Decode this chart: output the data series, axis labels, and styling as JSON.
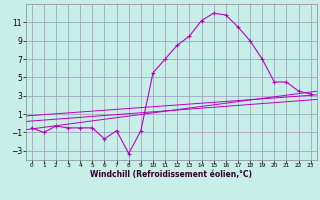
{
  "bg_color": "#c8eee8",
  "line_color": "#bb00bb",
  "grid_color": "#9999bb",
  "xlabel": "Windchill (Refroidissement éolien,°C)",
  "ylim": [
    -4,
    13
  ],
  "xlim": [
    -0.5,
    23.5
  ],
  "yticks": [
    -3,
    -1,
    1,
    3,
    5,
    7,
    9,
    11
  ],
  "xticks": [
    0,
    1,
    2,
    3,
    4,
    5,
    6,
    7,
    8,
    9,
    10,
    11,
    12,
    13,
    14,
    15,
    16,
    17,
    18,
    19,
    20,
    21,
    22,
    23
  ],
  "main_series_x": [
    0,
    1,
    2,
    3,
    4,
    5,
    6,
    7,
    8,
    9,
    10,
    11,
    12,
    13,
    14,
    15,
    16,
    17,
    18,
    19,
    20,
    21,
    22,
    23
  ],
  "main_series_y": [
    -0.5,
    -1.0,
    -0.3,
    -0.5,
    -0.5,
    -0.5,
    -1.7,
    -0.8,
    -3.3,
    -0.8,
    5.5,
    7.0,
    8.5,
    9.5,
    11.2,
    12.0,
    11.8,
    10.5,
    9.0,
    7.0,
    4.5,
    4.5,
    3.5,
    3.2
  ],
  "line1_x": [
    -0.5,
    23.5
  ],
  "line1_y": [
    -0.7,
    3.5
  ],
  "line2_x": [
    -0.5,
    23.5
  ],
  "line2_y": [
    0.8,
    3.1
  ],
  "line3_x": [
    -0.5,
    23.5
  ],
  "line3_y": [
    0.2,
    2.6
  ],
  "xlabel_fontsize": 5.5,
  "tick_fontsize_x": 4.2,
  "tick_fontsize_y": 5.5
}
